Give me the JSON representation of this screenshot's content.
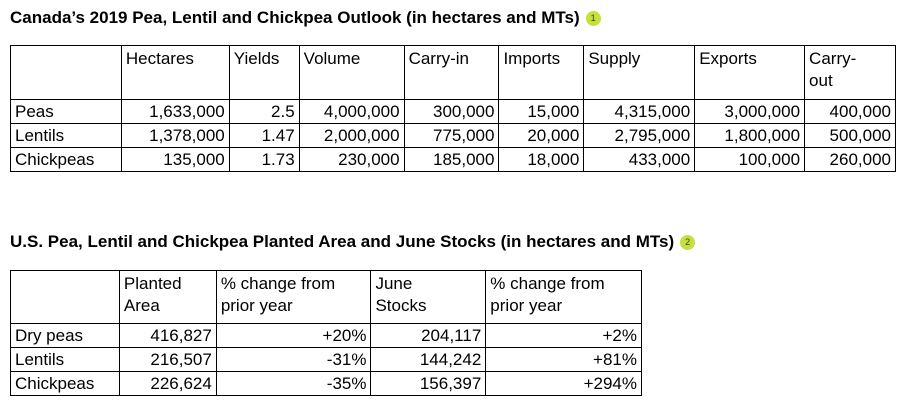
{
  "table1": {
    "title": "Canada’s 2019 Pea, Lentil and Chickpea Outlook (in hectares and MTs)",
    "badge": "1",
    "headers": [
      "",
      "Hectares",
      "Yields",
      "Volume",
      "Carry-in",
      "Imports",
      "Supply",
      "Exports",
      "Carry-\nout"
    ],
    "rows": [
      [
        "Peas",
        "1,633,000",
        "2.5",
        "4,000,000",
        "300,000",
        "15,000",
        "4,315,000",
        "3,000,000",
        "400,000"
      ],
      [
        "Lentils",
        "1,378,000",
        "1.47",
        "2,000,000",
        "775,000",
        "20,000",
        "2,795,000",
        "1,800,000",
        "500,000"
      ],
      [
        "Chickpeas",
        "135,000",
        "1.73",
        "230,000",
        "185,000",
        "18,000",
        "433,000",
        "100,000",
        "260,000"
      ]
    ]
  },
  "table2": {
    "title": "U.S. Pea, Lentil and Chickpea Planted Area and June Stocks (in hectares and MTs)",
    "badge": "2",
    "headers": [
      "",
      "Planted\nArea",
      "% change from\nprior year",
      "June\nStocks",
      "% change from\nprior year"
    ],
    "rows": [
      [
        "Dry peas",
        "416,827",
        "+20%",
        "204,117",
        "+2%"
      ],
      [
        "Lentils",
        "216,507",
        "-31%",
        "144,242",
        "+81%"
      ],
      [
        "Chickpeas",
        "226,624",
        "-35%",
        "156,397",
        "+294%"
      ]
    ]
  }
}
